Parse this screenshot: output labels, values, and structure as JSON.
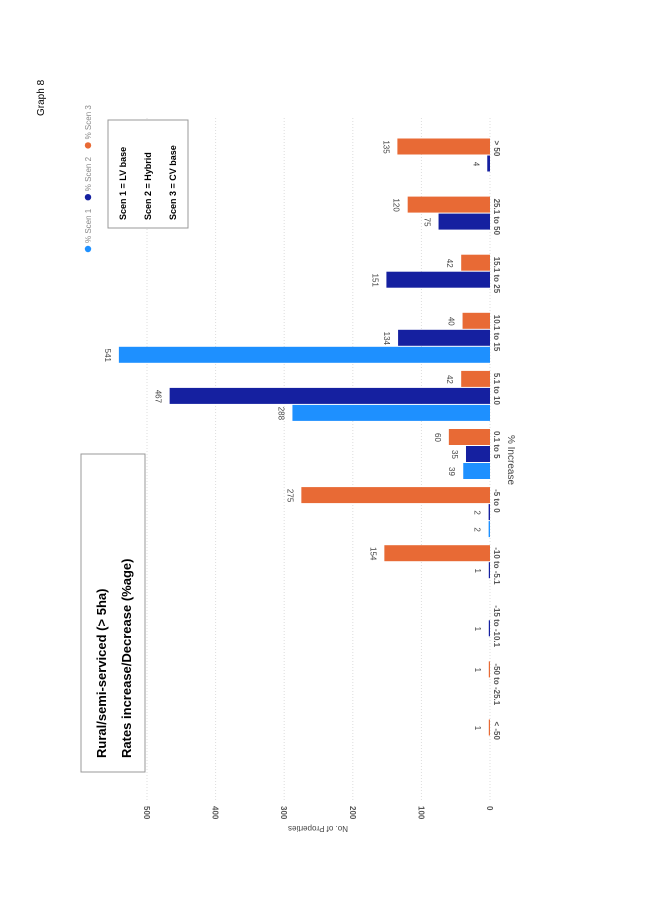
{
  "page_label": "Graph 8",
  "title_box": {
    "line1": "Rural/semi-serviced (> 5ha)",
    "line2": "Rates increase/Decrease (%age)"
  },
  "key_box": {
    "line1": "Scen 1 = LV base",
    "line2": "Scen 2 = Hybrid",
    "line3": "Scen 3 = CV base"
  },
  "chart_data": {
    "type": "bar",
    "orientation": "rotated 90 degrees on page",
    "xlabel": "% Increase",
    "ylabel": "No. of Properties",
    "ylim": [
      0,
      550
    ],
    "yticks": [
      "0",
      "100",
      "200",
      "300",
      "400",
      "500"
    ],
    "grid": true,
    "legend_placement": "top",
    "categories": [
      "< -50",
      "-50 to -25.1",
      "-15 to -10.1",
      "-10 to -5.1",
      "-5 to 0",
      "0.1 to 5",
      "5.1 to 10",
      "10.1 to 15",
      "15.1 to 25",
      "25.1 to 50",
      "> 50"
    ],
    "series": [
      {
        "name": "% Scen 1",
        "color": "#1E90FF",
        "values": [
          null,
          null,
          null,
          null,
          2,
          39,
          288,
          541,
          null,
          null,
          null
        ]
      },
      {
        "name": "% Scen 2",
        "color": "#1520A0",
        "values": [
          null,
          null,
          1,
          1,
          2,
          35,
          467,
          134,
          151,
          75,
          4
        ]
      },
      {
        "name": "% Scen 3",
        "color": "#E86A35",
        "values": [
          1,
          1,
          null,
          154,
          275,
          60,
          42,
          40,
          42,
          120,
          135
        ]
      }
    ]
  }
}
